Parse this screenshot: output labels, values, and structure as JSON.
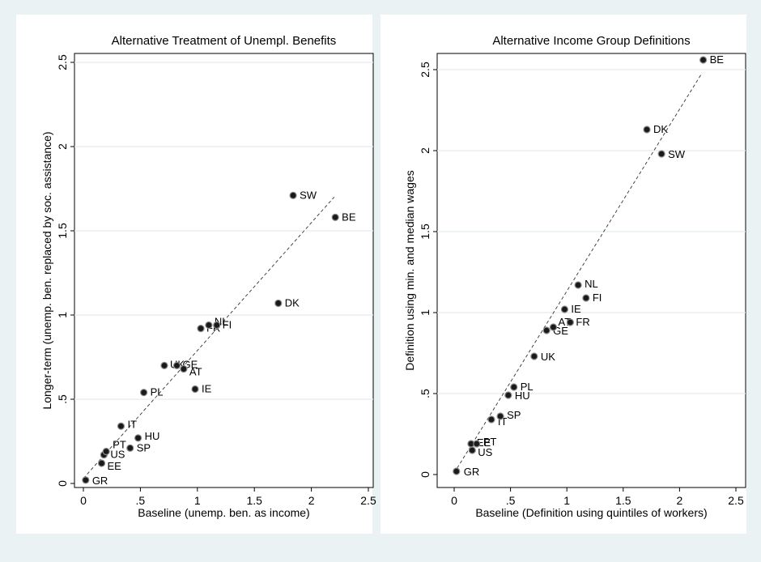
{
  "chart_data": [
    {
      "type": "scatter",
      "title": "Alternative Treatment of Unempl. Benefits",
      "xlabel": "Baseline (unemp. ben. as income)",
      "ylabel": "Longer-term (unemp. ben. replaced by soc. assistance)",
      "xlim": [
        0,
        2.5
      ],
      "ylim": [
        0,
        2.5
      ],
      "xticks": [
        0,
        0.5,
        1,
        1.5,
        2,
        2.5
      ],
      "xtick_labels": [
        "0",
        ".5",
        "1",
        "1.5",
        "2",
        "2.5"
      ],
      "yticks": [
        0,
        0.5,
        1,
        1.5,
        2,
        2.5
      ],
      "ytick_labels": [
        "0",
        ".5",
        "1",
        "1.5",
        "2",
        "2.5"
      ],
      "grid": "horizontal",
      "fit_line": [
        [
          0,
          0.03
        ],
        [
          2.2,
          1.7
        ]
      ],
      "points": [
        {
          "label": "GR",
          "x": 0.02,
          "y": 0.02
        },
        {
          "label": "EE",
          "x": 0.16,
          "y": 0.12
        },
        {
          "label": "US",
          "x": 0.18,
          "y": 0.17
        },
        {
          "label": "PT",
          "x": 0.2,
          "y": 0.19
        },
        {
          "label": "SP",
          "x": 0.41,
          "y": 0.21
        },
        {
          "label": "HU",
          "x": 0.48,
          "y": 0.27
        },
        {
          "label": "IT",
          "x": 0.33,
          "y": 0.34
        },
        {
          "label": "PL",
          "x": 0.53,
          "y": 0.54
        },
        {
          "label": "IE",
          "x": 0.98,
          "y": 0.56
        },
        {
          "label": "UK",
          "x": 0.71,
          "y": 0.7
        },
        {
          "label": "GE",
          "x": 0.82,
          "y": 0.7
        },
        {
          "label": "AT",
          "x": 0.88,
          "y": 0.68
        },
        {
          "label": "FR",
          "x": 1.03,
          "y": 0.92
        },
        {
          "label": "NL",
          "x": 1.1,
          "y": 0.94
        },
        {
          "label": "FI",
          "x": 1.17,
          "y": 0.94
        },
        {
          "label": "DK",
          "x": 1.71,
          "y": 1.07
        },
        {
          "label": "BE",
          "x": 2.21,
          "y": 1.58
        },
        {
          "label": "SW",
          "x": 1.84,
          "y": 1.71
        }
      ]
    },
    {
      "type": "scatter",
      "title": "Alternative Income Group Definitions",
      "xlabel": "Baseline (Definition using quintiles of workers)",
      "ylabel": "Definition using min. and median wages",
      "xlim": [
        0,
        2.5
      ],
      "ylim": [
        0,
        2.5
      ],
      "xticks": [
        0,
        0.5,
        1,
        1.5,
        2,
        2.5
      ],
      "xtick_labels": [
        "0",
        ".5",
        "1",
        "1.5",
        "2",
        "2.5"
      ],
      "yticks": [
        0,
        0.5,
        1,
        1.5,
        2,
        2.5
      ],
      "ytick_labels": [
        "0",
        ".5",
        "1",
        "1.5",
        "2",
        "2.5"
      ],
      "grid": "horizontal",
      "fit_line": [
        [
          0,
          0.01
        ],
        [
          2.2,
          2.48
        ]
      ],
      "points": [
        {
          "label": "GR",
          "x": 0.02,
          "y": 0.02
        },
        {
          "label": "US",
          "x": 0.16,
          "y": 0.15
        },
        {
          "label": "EE",
          "x": 0.15,
          "y": 0.19
        },
        {
          "label": "PT",
          "x": 0.2,
          "y": 0.19
        },
        {
          "label": "IT",
          "x": 0.33,
          "y": 0.34
        },
        {
          "label": "SP",
          "x": 0.41,
          "y": 0.36
        },
        {
          "label": "HU",
          "x": 0.48,
          "y": 0.49
        },
        {
          "label": "PL",
          "x": 0.53,
          "y": 0.54
        },
        {
          "label": "UK",
          "x": 0.71,
          "y": 0.73
        },
        {
          "label": "GE",
          "x": 0.82,
          "y": 0.89
        },
        {
          "label": "AT",
          "x": 0.88,
          "y": 0.91
        },
        {
          "label": "FR",
          "x": 1.03,
          "y": 0.94
        },
        {
          "label": "IE",
          "x": 0.98,
          "y": 1.02
        },
        {
          "label": "FI",
          "x": 1.17,
          "y": 1.09
        },
        {
          "label": "NL",
          "x": 1.1,
          "y": 1.17
        },
        {
          "label": "SW",
          "x": 1.84,
          "y": 1.98
        },
        {
          "label": "DK",
          "x": 1.71,
          "y": 2.13
        },
        {
          "label": "BE",
          "x": 2.21,
          "y": 2.56
        }
      ]
    }
  ]
}
